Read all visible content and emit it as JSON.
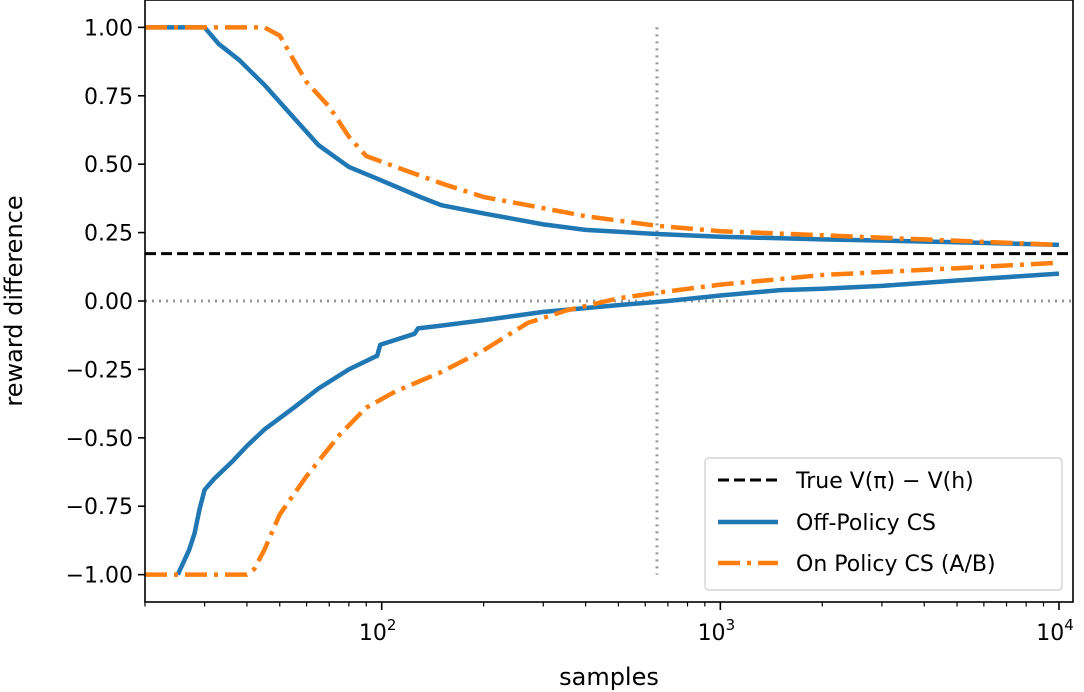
{
  "chart_data": {
    "type": "line",
    "title": "",
    "xlabel": "samples",
    "ylabel": "reward difference",
    "xscale": "log",
    "xlim": [
      20,
      11000
    ],
    "ylim": [
      -1.1,
      1.1
    ],
    "xticks": [
      {
        "value": 100,
        "base": "10",
        "exp": "2"
      },
      {
        "value": 1000,
        "base": "10",
        "exp": "3"
      },
      {
        "value": 10000,
        "base": "10",
        "exp": "4"
      }
    ],
    "yticks": [
      {
        "value": 1.0,
        "label": "1.00"
      },
      {
        "value": 0.75,
        "label": "0.75"
      },
      {
        "value": 0.5,
        "label": "0.50"
      },
      {
        "value": 0.25,
        "label": "0.25"
      },
      {
        "value": 0.0,
        "label": "0.00"
      },
      {
        "value": -0.25,
        "label": "−0.25"
      },
      {
        "value": -0.5,
        "label": "−0.50"
      },
      {
        "value": -0.75,
        "label": "−0.75"
      },
      {
        "value": -1.0,
        "label": "−1.00"
      }
    ],
    "reference_lines": {
      "true_value": 0.173,
      "zero": 0.0,
      "vertical_x": 650
    },
    "legend_position": "lower-right",
    "series": [
      {
        "name": "True V(π) − V(h)",
        "color": "#000000",
        "style": "dashed"
      },
      {
        "name": "Off-Policy CS",
        "color": "#1f77b4",
        "style": "solid",
        "upper": [
          [
            20,
            1.0
          ],
          [
            30,
            1.0
          ],
          [
            33,
            0.94
          ],
          [
            38,
            0.88
          ],
          [
            45,
            0.79
          ],
          [
            55,
            0.67
          ],
          [
            65,
            0.57
          ],
          [
            80,
            0.49
          ],
          [
            100,
            0.44
          ],
          [
            130,
            0.38
          ],
          [
            150,
            0.35
          ],
          [
            200,
            0.32
          ],
          [
            300,
            0.28
          ],
          [
            400,
            0.26
          ],
          [
            650,
            0.245
          ],
          [
            1000,
            0.235
          ],
          [
            2000,
            0.225
          ],
          [
            5000,
            0.215
          ],
          [
            10000,
            0.205
          ]
        ],
        "lower": [
          [
            25,
            -1.0
          ],
          [
            27,
            -0.91
          ],
          [
            28,
            -0.85
          ],
          [
            29,
            -0.76
          ],
          [
            30,
            -0.69
          ],
          [
            32,
            -0.65
          ],
          [
            36,
            -0.59
          ],
          [
            40,
            -0.53
          ],
          [
            45,
            -0.47
          ],
          [
            55,
            -0.39
          ],
          [
            65,
            -0.32
          ],
          [
            80,
            -0.25
          ],
          [
            97,
            -0.2
          ],
          [
            99,
            -0.16
          ],
          [
            105,
            -0.15
          ],
          [
            125,
            -0.12
          ],
          [
            128,
            -0.1
          ],
          [
            150,
            -0.09
          ],
          [
            200,
            -0.07
          ],
          [
            300,
            -0.04
          ],
          [
            500,
            -0.015
          ],
          [
            700,
            0.0
          ],
          [
            1000,
            0.02
          ],
          [
            1500,
            0.04
          ],
          [
            2000,
            0.045
          ],
          [
            3000,
            0.055
          ],
          [
            5000,
            0.075
          ],
          [
            10000,
            0.1
          ]
        ]
      },
      {
        "name": "On Policy CS (A/B)",
        "color": "#ff7f0e",
        "style": "dashdot",
        "upper": [
          [
            20,
            1.0
          ],
          [
            45,
            1.0
          ],
          [
            50,
            0.97
          ],
          [
            55,
            0.88
          ],
          [
            60,
            0.8
          ],
          [
            70,
            0.71
          ],
          [
            80,
            0.6
          ],
          [
            90,
            0.53
          ],
          [
            110,
            0.49
          ],
          [
            150,
            0.43
          ],
          [
            200,
            0.38
          ],
          [
            270,
            0.35
          ],
          [
            400,
            0.31
          ],
          [
            650,
            0.275
          ],
          [
            1000,
            0.255
          ],
          [
            2000,
            0.24
          ],
          [
            5000,
            0.22
          ],
          [
            10000,
            0.205
          ]
        ],
        "lower": [
          [
            20,
            -1.0
          ],
          [
            40,
            -1.0
          ],
          [
            42,
            -0.98
          ],
          [
            45,
            -0.91
          ],
          [
            50,
            -0.78
          ],
          [
            60,
            -0.64
          ],
          [
            75,
            -0.49
          ],
          [
            90,
            -0.39
          ],
          [
            110,
            -0.33
          ],
          [
            150,
            -0.26
          ],
          [
            200,
            -0.18
          ],
          [
            270,
            -0.08
          ],
          [
            350,
            -0.035
          ],
          [
            500,
            0.01
          ],
          [
            650,
            0.03
          ],
          [
            1000,
            0.06
          ],
          [
            1500,
            0.08
          ],
          [
            2000,
            0.095
          ],
          [
            5000,
            0.12
          ],
          [
            10000,
            0.14
          ]
        ]
      }
    ]
  }
}
